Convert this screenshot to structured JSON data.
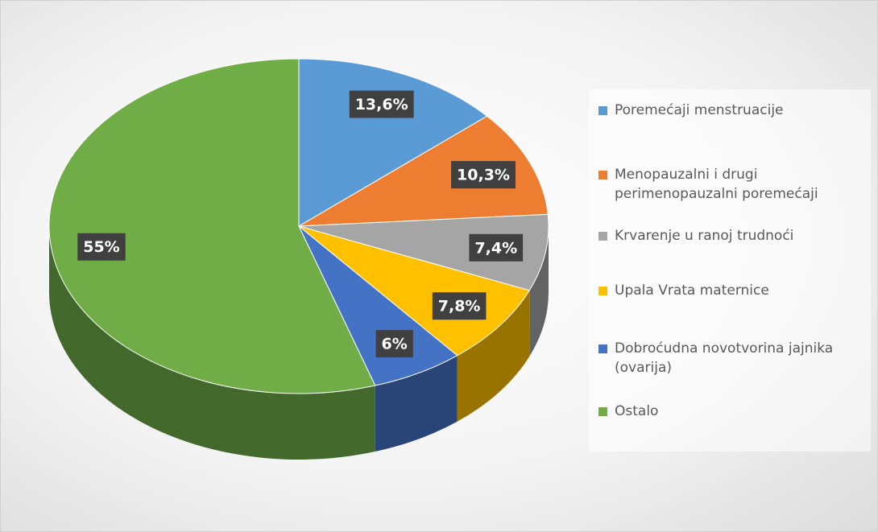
{
  "chart_data": {
    "type": "pie",
    "categories": [
      "Poremećaji menstruacije",
      "Menopauzalni i drugi perimenopauzalni poremećaji",
      "Krvarenje u ranoj trudnoći",
      "Upala Vrata maternice",
      "Dobroćudna novotvorina jajnika (ovarija)",
      "Ostalo"
    ],
    "values": [
      13.6,
      10.3,
      7.4,
      7.8,
      6,
      55
    ],
    "value_labels": [
      "13,6%",
      "10,3%",
      "7,4%",
      "7,8%",
      "6%",
      "55%"
    ],
    "colors": [
      "#5b9bd5",
      "#ed7d31",
      "#a5a5a5",
      "#ffc000",
      "#4472c4",
      "#70ad47"
    ],
    "legend": "right"
  }
}
